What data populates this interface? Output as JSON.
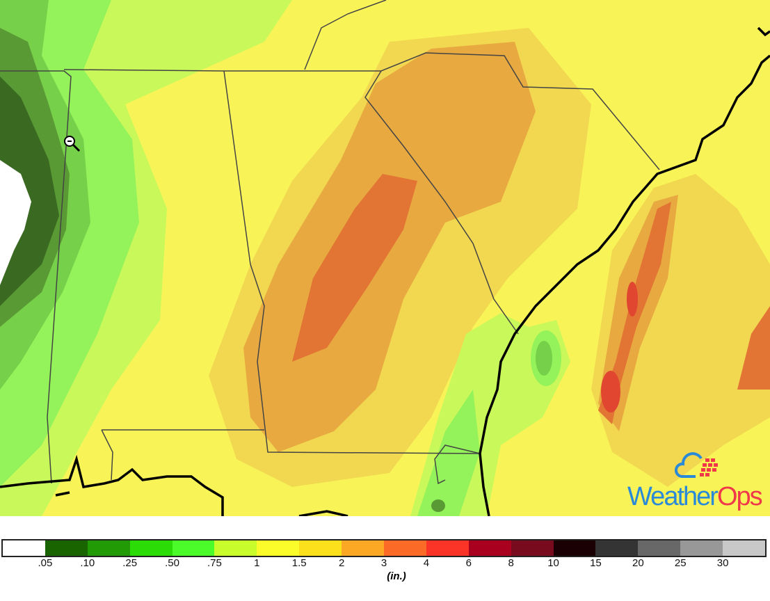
{
  "map": {
    "product": "precipitation accumulation",
    "background_color": "#f8f458",
    "cursor": "zoom-out-icon"
  },
  "legend": {
    "colors": [
      "#ffffff",
      "#1a6400",
      "#229a06",
      "#2bdc06",
      "#4cfc2a",
      "#c8fc2a",
      "#fcfc2a",
      "#fce01c",
      "#fca824",
      "#fc6a28",
      "#fc3428",
      "#a8001e",
      "#780c1e",
      "#1a0004",
      "#343434",
      "#686868",
      "#989898",
      "#c8c8c8"
    ],
    "labels": [
      ".05",
      ".10",
      ".25",
      ".50",
      ".75",
      "1",
      "1.5",
      "2",
      "3",
      "4",
      "6",
      "8",
      "10",
      "15",
      "20",
      "25",
      "30"
    ],
    "unit": "(in.)"
  },
  "logo": {
    "text_a": "Weather",
    "text_b": "Ops",
    "color_a": "#2a8ad8",
    "color_b": "#f0384a"
  }
}
